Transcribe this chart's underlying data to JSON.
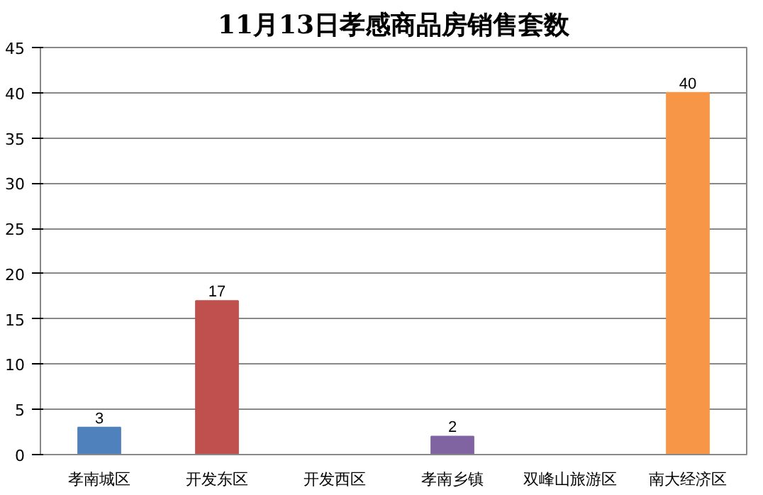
{
  "chart_data": {
    "type": "bar",
    "title": "11月13日孝感商品房销售套数",
    "categories": [
      "孝南城区",
      "开发东区",
      "开发西区",
      "孝南乡镇",
      "双峰山旅游区",
      "南大经济区"
    ],
    "values": [
      3,
      17,
      0,
      2,
      0,
      40
    ],
    "colors": [
      "#4f81bd",
      "#c0504d",
      "#9bbb59",
      "#8064a2",
      "#4bacc6",
      "#f79646"
    ],
    "value_labels": [
      "3",
      "17",
      null,
      "2",
      null,
      "40"
    ],
    "ylim": [
      0,
      45
    ],
    "yticks": [
      0,
      5,
      10,
      15,
      20,
      25,
      30,
      35,
      40,
      45
    ],
    "grid": "y"
  }
}
